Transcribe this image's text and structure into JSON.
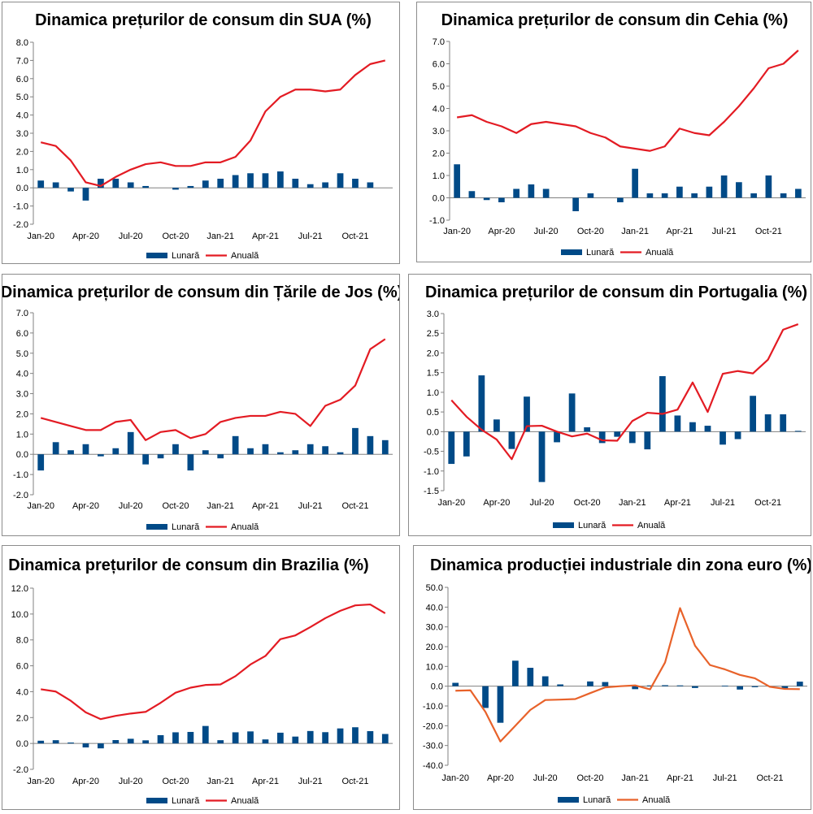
{
  "legend": {
    "monthly": "Lunară",
    "annual": "Anuală"
  },
  "colors": {
    "bar": "#004a87",
    "line": "#e31b23",
    "line_alt": "#e8622a",
    "grid": "#c8c8c8",
    "border": "#8c8c8c"
  },
  "chart_data": [
    {
      "type": "bar+line",
      "title": "Dinamica prețurilor de consum din SUA (%)",
      "categories": [
        "Jan-20",
        "Feb-20",
        "Mar-20",
        "Apr-20",
        "May-20",
        "Jun-20",
        "Jul-20",
        "Aug-20",
        "Sep-20",
        "Oct-20",
        "Nov-20",
        "Dec-20",
        "Jan-21",
        "Feb-21",
        "Mar-21",
        "Apr-21",
        "May-21",
        "Jun-21",
        "Jul-21",
        "Aug-21",
        "Sep-21",
        "Oct-21",
        "Nov-21",
        "Dec-21"
      ],
      "tick_labels": [
        "Jan-20",
        "Apr-20",
        "Jul-20",
        "Oct-20",
        "Jan-21",
        "Apr-21",
        "Jul-21",
        "Oct-21"
      ],
      "ylim": [
        -2.0,
        8.0
      ],
      "ystep": 1.0,
      "decimals": 1,
      "series": [
        {
          "name": "Lunară",
          "kind": "bar",
          "values": [
            0.4,
            0.3,
            -0.2,
            -0.7,
            0.5,
            0.5,
            0.3,
            0.1,
            0.0,
            -0.1,
            0.1,
            0.4,
            0.5,
            0.7,
            0.8,
            0.8,
            0.9,
            0.5,
            0.2,
            0.3,
            0.8,
            0.5,
            0.3,
            0.0
          ]
        },
        {
          "name": "Anuală",
          "kind": "line",
          "values": [
            2.5,
            2.3,
            1.5,
            0.3,
            0.1,
            0.6,
            1.0,
            1.3,
            1.4,
            1.2,
            1.2,
            1.4,
            1.4,
            1.7,
            2.6,
            4.2,
            5.0,
            5.4,
            5.4,
            5.3,
            5.4,
            6.2,
            6.8,
            7.0
          ]
        }
      ]
    },
    {
      "type": "bar+line",
      "title": "Dinamica prețurilor de consum din Cehia (%)",
      "categories": [
        "Jan-20",
        "Feb-20",
        "Mar-20",
        "Apr-20",
        "May-20",
        "Jun-20",
        "Jul-20",
        "Aug-20",
        "Sep-20",
        "Oct-20",
        "Nov-20",
        "Dec-20",
        "Jan-21",
        "Feb-21",
        "Mar-21",
        "Apr-21",
        "May-21",
        "Jun-21",
        "Jul-21",
        "Aug-21",
        "Sep-21",
        "Oct-21",
        "Nov-21",
        "Dec-21"
      ],
      "tick_labels": [
        "Jan-20",
        "Apr-20",
        "Jul-20",
        "Oct-20",
        "Jan-21",
        "Apr-21",
        "Jul-21",
        "Oct-21"
      ],
      "ylim": [
        -1.0,
        7.0
      ],
      "ystep": 1.0,
      "decimals": 1,
      "series": [
        {
          "name": "Lunară",
          "kind": "bar",
          "values": [
            1.5,
            0.3,
            -0.1,
            -0.2,
            0.4,
            0.6,
            0.4,
            0.0,
            -0.6,
            0.2,
            0.0,
            -0.2,
            1.3,
            0.2,
            0.2,
            0.5,
            0.2,
            0.5,
            1.0,
            0.7,
            0.2,
            1.0,
            0.2,
            0.4
          ]
        },
        {
          "name": "Anuală",
          "kind": "line",
          "values": [
            3.6,
            3.7,
            3.4,
            3.2,
            2.9,
            3.3,
            3.4,
            3.3,
            3.2,
            2.9,
            2.7,
            2.3,
            2.2,
            2.1,
            2.3,
            3.1,
            2.9,
            2.8,
            3.4,
            4.1,
            4.9,
            5.8,
            6.0,
            6.6
          ]
        }
      ]
    },
    {
      "type": "bar+line",
      "title": "Dinamica prețurilor de consum din Țările de Jos (%)",
      "categories": [
        "Jan-20",
        "Feb-20",
        "Mar-20",
        "Apr-20",
        "May-20",
        "Jun-20",
        "Jul-20",
        "Aug-20",
        "Sep-20",
        "Oct-20",
        "Nov-20",
        "Dec-20",
        "Jan-21",
        "Feb-21",
        "Mar-21",
        "Apr-21",
        "May-21",
        "Jun-21",
        "Jul-21",
        "Aug-21",
        "Sep-21",
        "Oct-21",
        "Nov-21",
        "Dec-21"
      ],
      "tick_labels": [
        "Jan-20",
        "Apr-20",
        "Jul-20",
        "Oct-20",
        "Jan-21",
        "Apr-21",
        "Jul-21",
        "Oct-21"
      ],
      "ylim": [
        -2.0,
        7.0
      ],
      "ystep": 1.0,
      "decimals": 1,
      "series": [
        {
          "name": "Lunară",
          "kind": "bar",
          "values": [
            -0.8,
            0.6,
            0.2,
            0.5,
            -0.1,
            0.3,
            1.1,
            -0.5,
            -0.2,
            0.5,
            -0.8,
            0.2,
            -0.2,
            0.9,
            0.3,
            0.5,
            0.1,
            0.2,
            0.5,
            0.4,
            0.1,
            1.3,
            0.9,
            0.7
          ]
        },
        {
          "name": "Anuală",
          "kind": "line",
          "values": [
            1.8,
            1.6,
            1.4,
            1.2,
            1.2,
            1.6,
            1.7,
            0.7,
            1.1,
            1.2,
            0.8,
            1.0,
            1.6,
            1.8,
            1.9,
            1.9,
            2.1,
            2.0,
            1.4,
            2.4,
            2.7,
            3.4,
            5.2,
            5.7
          ]
        }
      ]
    },
    {
      "type": "bar+line",
      "title": "Dinamica prețurilor de consum din Portugalia (%)",
      "categories": [
        "Jan-20",
        "Feb-20",
        "Mar-20",
        "Apr-20",
        "May-20",
        "Jun-20",
        "Jul-20",
        "Aug-20",
        "Sep-20",
        "Oct-20",
        "Nov-20",
        "Dec-20",
        "Jan-21",
        "Feb-21",
        "Mar-21",
        "Apr-21",
        "May-21",
        "Jun-21",
        "Jul-21",
        "Aug-21",
        "Sep-21",
        "Oct-21",
        "Nov-21",
        "Dec-21"
      ],
      "tick_labels": [
        "Jan-20",
        "Apr-20",
        "Jul-20",
        "Oct-20",
        "Jan-21",
        "Apr-21",
        "Jul-21",
        "Oct-21"
      ],
      "ylim": [
        -1.5,
        3.0
      ],
      "ystep": 0.5,
      "decimals": 1,
      "series": [
        {
          "name": "Lunară",
          "kind": "bar",
          "values": [
            -0.82,
            -0.63,
            1.43,
            0.31,
            -0.44,
            0.89,
            -1.28,
            -0.27,
            0.97,
            0.11,
            -0.29,
            -0.13,
            -0.29,
            -0.45,
            1.41,
            0.41,
            0.24,
            0.15,
            -0.33,
            -0.19,
            0.91,
            0.44,
            0.44,
            0.02
          ]
        },
        {
          "name": "Anuală",
          "kind": "line",
          "values": [
            0.8,
            0.38,
            0.05,
            -0.2,
            -0.7,
            0.14,
            0.15,
            0.0,
            -0.12,
            -0.05,
            -0.22,
            -0.23,
            0.27,
            0.48,
            0.45,
            0.56,
            1.25,
            0.5,
            1.47,
            1.54,
            1.48,
            1.83,
            2.59,
            2.73
          ]
        }
      ]
    },
    {
      "type": "bar+line",
      "title": "Dinamica prețurilor de consum din Brazilia (%)",
      "categories": [
        "Jan-20",
        "Feb-20",
        "Mar-20",
        "Apr-20",
        "May-20",
        "Jun-20",
        "Jul-20",
        "Aug-20",
        "Sep-20",
        "Oct-20",
        "Nov-20",
        "Dec-20",
        "Jan-21",
        "Feb-21",
        "Mar-21",
        "Apr-21",
        "May-21",
        "Jun-21",
        "Jul-21",
        "Aug-21",
        "Sep-21",
        "Oct-21",
        "Nov-21",
        "Dec-21"
      ],
      "tick_labels": [
        "Jan-20",
        "Apr-20",
        "Jul-20",
        "Oct-20",
        "Jan-21",
        "Apr-21",
        "Jul-21",
        "Oct-21"
      ],
      "ylim": [
        -2.0,
        12.0
      ],
      "ystep": 2.0,
      "decimals": 1,
      "series": [
        {
          "name": "Lunară",
          "kind": "bar",
          "values": [
            0.21,
            0.25,
            0.07,
            -0.31,
            -0.38,
            0.26,
            0.36,
            0.24,
            0.64,
            0.86,
            0.89,
            1.35,
            0.25,
            0.86,
            0.93,
            0.31,
            0.83,
            0.53,
            0.96,
            0.87,
            1.16,
            1.25,
            0.95,
            0.73
          ]
        },
        {
          "name": "Anuală",
          "kind": "line",
          "values": [
            4.19,
            4.01,
            3.3,
            2.4,
            1.88,
            2.13,
            2.31,
            2.44,
            3.14,
            3.92,
            4.31,
            4.52,
            4.56,
            5.2,
            6.1,
            6.76,
            8.06,
            8.35,
            8.99,
            9.68,
            10.25,
            10.67,
            10.74,
            10.06
          ]
        }
      ]
    },
    {
      "type": "bar+line",
      "title": "Dinamica producției industriale din zona euro (%)",
      "categories": [
        "Jan-20",
        "Feb-20",
        "Mar-20",
        "Apr-20",
        "May-20",
        "Jun-20",
        "Jul-20",
        "Aug-20",
        "Sep-20",
        "Oct-20",
        "Nov-20",
        "Dec-20",
        "Jan-21",
        "Feb-21",
        "Mar-21",
        "Apr-21",
        "May-21",
        "Jun-21",
        "Jul-21",
        "Aug-21",
        "Sep-21",
        "Oct-21",
        "Nov-21",
        "Dec-21"
      ],
      "tick_labels": [
        "Jan-20",
        "Apr-20",
        "Jul-20",
        "Oct-20",
        "Jan-21",
        "Apr-21",
        "Jul-21",
        "Oct-21"
      ],
      "ylim": [
        -40.0,
        50.0
      ],
      "ystep": 10.0,
      "decimals": 1,
      "series": [
        {
          "name": "Lunară",
          "kind": "bar",
          "values": [
            1.7,
            0.0,
            -11.0,
            -18.5,
            12.9,
            9.3,
            5.0,
            0.9,
            0.0,
            2.4,
            2.1,
            0.0,
            -1.5,
            0.4,
            0.5,
            0.4,
            -0.9,
            0.0,
            0.3,
            -1.7,
            -0.5,
            0.0,
            -1.1,
            2.3
          ]
        },
        {
          "name": "Anuală",
          "kind": "line",
          "values": [
            -2.3,
            -2.1,
            -13.0,
            -28.0,
            -20.0,
            -12.0,
            -7.0,
            -6.8,
            -6.5,
            -3.5,
            -0.6,
            0.0,
            0.4,
            -1.6,
            12.0,
            39.5,
            20.5,
            10.7,
            8.5,
            5.7,
            4.0,
            -0.3,
            -1.4,
            -1.5
          ]
        }
      ]
    }
  ]
}
